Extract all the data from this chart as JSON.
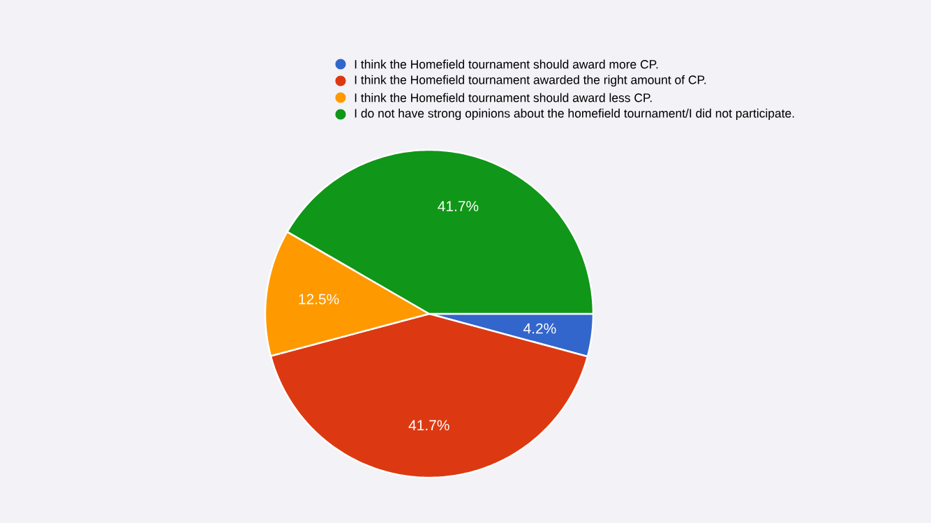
{
  "chart_data": {
    "type": "pie",
    "categories": [
      "I think the Homefield tournament should award more CP.",
      "I think the Homefield tournament awarded the right amount of CP.",
      "I think the Homefield tournament should award less CP.",
      "I do not have strong opinions about the homefield tournament/I did not participate."
    ],
    "values": [
      4.2,
      41.7,
      12.5,
      41.7
    ],
    "colors": [
      "#3366cc",
      "#dc3912",
      "#ff9900",
      "#109618"
    ],
    "value_labels": [
      "4.2%",
      "41.7%",
      "12.5%",
      "41.7%"
    ],
    "legend": "top right"
  }
}
